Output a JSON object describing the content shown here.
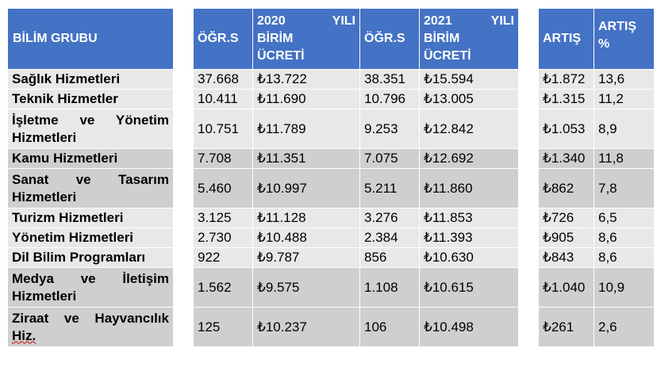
{
  "header": {
    "group": "BİLİM GRUBU",
    "students_2020": "ÖĞR.S",
    "fee_2020_line1_a": "2020",
    "fee_2020_line1_b": "YILI",
    "fee_2020_line2": "BİRİM",
    "fee_2020_line3": "ÜCRETİ",
    "students_2021": "ÖĞR.S",
    "fee_2021_line1_a": "2021",
    "fee_2021_line1_b": "YILI",
    "fee_2021_line2": "BİRİM",
    "fee_2021_line3": "ÜCRETİ",
    "increase": "ARTIŞ",
    "increase_pct_line1": "ARTIŞ",
    "increase_pct_line2": "%"
  },
  "rows": [
    {
      "group": "Sağlık Hizmetleri",
      "s2020": "37.668",
      "f2020": "₺13.722",
      "s2021": "38.351",
      "f2021": "₺15.594",
      "inc": "₺1.872",
      "pct": "13,6"
    },
    {
      "group": "Teknik Hizmetler",
      "s2020": "10.411",
      "f2020": "₺11.690",
      "s2021": "10.796",
      "f2021": "₺13.005",
      "inc": "₺1.315",
      "pct": "11,2"
    },
    {
      "group": "İşletme ve Yönetim Hizmetleri",
      "s2020": "10.751",
      "f2020": "₺11.789",
      "s2021": "9.253",
      "f2021": "₺12.842",
      "inc": "₺1.053",
      "pct": "8,9"
    },
    {
      "group": "Kamu Hizmetleri",
      "s2020": "7.708",
      "f2020": "₺11.351",
      "s2021": "7.075",
      "f2021": "₺12.692",
      "inc": "₺1.340",
      "pct": "11,8"
    },
    {
      "group": "Sanat ve Tasarım Hizmetleri",
      "s2020": "5.460",
      "f2020": "₺10.997",
      "s2021": "5.211",
      "f2021": "₺11.860",
      "inc": "₺862",
      "pct": "7,8"
    },
    {
      "group": "Turizm Hizmetleri",
      "s2020": "3.125",
      "f2020": "₺11.128",
      "s2021": "3.276",
      "f2021": "₺11.853",
      "inc": "₺726",
      "pct": "6,5"
    },
    {
      "group": "Yönetim Hizmetleri",
      "s2020": "2.730",
      "f2020": "₺10.488",
      "s2021": "2.384",
      "f2021": "₺11.393",
      "inc": "₺905",
      "pct": "8,6"
    },
    {
      "group": "Dil Bilim Programları",
      "s2020": "922",
      "f2020": "₺9.787",
      "s2021": "856",
      "f2021": "₺10.630",
      "inc": "₺843",
      "pct": "8,6"
    },
    {
      "group": "Medya ve İletişim Hizmetleri",
      "s2020": "1.562",
      "f2020": "₺9.575",
      "s2021": "1.108",
      "f2021": "₺10.615",
      "inc": "₺1.040",
      "pct": "10,9"
    },
    {
      "group_a": "Ziraat ve Hayvancılık",
      "group_b": "Hiz.",
      "s2020": "125",
      "f2020": "₺10.237",
      "s2021": "106",
      "f2021": "₺10.498",
      "inc": "₺261",
      "pct": "2,6"
    }
  ]
}
